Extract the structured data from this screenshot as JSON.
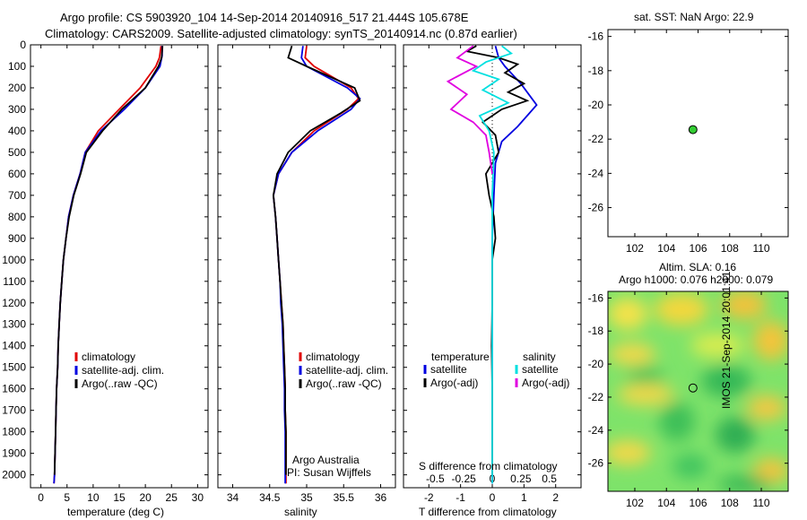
{
  "header": {
    "line1": "Argo profile: CS 5903920_104 14-Sep-2014 20140916_517 21.444S 105.678E",
    "line2": "Climatology: CARS2009. Satellite-adjusted climatology: synTS_20140914.nc (0.87d earlier)"
  },
  "colors": {
    "climatology": "#e00000",
    "satellite": "#0000e0",
    "argo": "#000000",
    "sal_satellite": "#00e0e0",
    "sal_argo": "#e000e0",
    "map_point": "#33cc33"
  },
  "depth_axis": {
    "ticks": [
      "0",
      "100",
      "200",
      "300",
      "400",
      "500",
      "600",
      "700",
      "800",
      "900",
      "1000",
      "1100",
      "1200",
      "1300",
      "1400",
      "1500",
      "1600",
      "1700",
      "1800",
      "1900",
      "2000"
    ],
    "range": [
      0,
      2060
    ],
    "reversed": true
  },
  "chart_data": [
    {
      "type": "line",
      "name": "temperature",
      "xlabel": "temperature (deg C)",
      "xticks": [
        "0",
        "5",
        "10",
        "15",
        "20",
        "25",
        "30"
      ],
      "xlim": [
        -2,
        32
      ],
      "ylim": [
        2060,
        0
      ],
      "legend": [
        "climatology",
        "satellite-adj. clim.",
        "Argo(..raw -QC)"
      ],
      "series": [
        {
          "name": "climatology",
          "color": "#e00000",
          "points": [
            [
              23,
              5
            ],
            [
              22.7,
              60
            ],
            [
              22,
              100
            ],
            [
              19,
              200
            ],
            [
              15,
              300
            ],
            [
              11,
              400
            ],
            [
              8.5,
              500
            ],
            [
              7.5,
              600
            ],
            [
              6.2,
              700
            ],
            [
              5.3,
              800
            ],
            [
              4.8,
              900
            ],
            [
              4.3,
              1000
            ],
            [
              4,
              1100
            ],
            [
              3.7,
              1200
            ],
            [
              3.5,
              1300
            ],
            [
              3.3,
              1400
            ],
            [
              3.2,
              1500
            ],
            [
              3,
              1600
            ],
            [
              2.9,
              1700
            ],
            [
              2.8,
              1800
            ],
            [
              2.7,
              1900
            ],
            [
              2.6,
              2000
            ],
            [
              2.5,
              2040
            ]
          ]
        },
        {
          "name": "satellite-adj. clim.",
          "color": "#0000e0",
          "points": [
            [
              23.2,
              5
            ],
            [
              23.2,
              50
            ],
            [
              22.8,
              100
            ],
            [
              20,
              200
            ],
            [
              16,
              300
            ],
            [
              11.5,
              400
            ],
            [
              8.5,
              500
            ],
            [
              7.5,
              600
            ],
            [
              6.2,
              700
            ],
            [
              5.3,
              800
            ],
            [
              4.8,
              900
            ],
            [
              4.3,
              1000
            ],
            [
              4,
              1100
            ],
            [
              3.7,
              1200
            ],
            [
              3.5,
              1300
            ],
            [
              3.3,
              1400
            ],
            [
              3.2,
              1500
            ],
            [
              3,
              1600
            ],
            [
              2.9,
              1700
            ],
            [
              2.8,
              1800
            ],
            [
              2.7,
              1900
            ],
            [
              2.6,
              2000
            ],
            [
              2.5,
              2040
            ]
          ]
        },
        {
          "name": "Argo(..raw -QC)",
          "color": "#000000",
          "points": [
            [
              23.3,
              5
            ],
            [
              23.1,
              60
            ],
            [
              22.5,
              100
            ],
            [
              20,
              200
            ],
            [
              15.5,
              300
            ],
            [
              11.8,
              400
            ],
            [
              8.7,
              500
            ],
            [
              7.6,
              600
            ],
            [
              6.3,
              700
            ],
            [
              5.4,
              800
            ],
            [
              4.8,
              900
            ],
            [
              4.3,
              1000
            ],
            [
              4,
              1100
            ],
            [
              3.7,
              1200
            ],
            [
              3.5,
              1300
            ],
            [
              3.3,
              1400
            ],
            [
              3.2,
              1500
            ],
            [
              3,
              1600
            ],
            [
              2.9,
              1700
            ],
            [
              2.8,
              1800
            ],
            [
              2.7,
              1900
            ],
            [
              2.6,
              2000
            ]
          ]
        }
      ]
    },
    {
      "type": "line",
      "name": "salinity",
      "xlabel": "salinity",
      "xticks": [
        "34",
        "34.5",
        "35",
        "35.5",
        "36"
      ],
      "xlim": [
        33.8,
        36.2
      ],
      "ylim": [
        2060,
        0
      ],
      "legend": [
        "climatology",
        "satellite-adj. clim.",
        "Argo(..raw -QC)"
      ],
      "annotation": [
        "Argo Australia",
        "PI: Susan Wijffels"
      ],
      "series": [
        {
          "name": "climatology",
          "color": "#e00000",
          "points": [
            [
              35,
              5
            ],
            [
              34.98,
              60
            ],
            [
              35.1,
              100
            ],
            [
              35.6,
              200
            ],
            [
              35.7,
              250
            ],
            [
              35.55,
              300
            ],
            [
              35.1,
              400
            ],
            [
              34.8,
              500
            ],
            [
              34.62,
              600
            ],
            [
              34.55,
              700
            ],
            [
              34.58,
              800
            ],
            [
              34.6,
              900
            ],
            [
              34.62,
              1000
            ],
            [
              34.64,
              1100
            ],
            [
              34.66,
              1200
            ],
            [
              34.68,
              1300
            ],
            [
              34.69,
              1400
            ],
            [
              34.7,
              1500
            ],
            [
              34.71,
              1600
            ],
            [
              34.71,
              1700
            ],
            [
              34.72,
              1800
            ],
            [
              34.72,
              1900
            ],
            [
              34.72,
              2000
            ],
            [
              34.72,
              2040
            ]
          ]
        },
        {
          "name": "satellite-adj. clim.",
          "color": "#0000e0",
          "points": [
            [
              34.95,
              5
            ],
            [
              34.93,
              60
            ],
            [
              35.0,
              100
            ],
            [
              35.55,
              200
            ],
            [
              35.72,
              250
            ],
            [
              35.6,
              300
            ],
            [
              35.15,
              400
            ],
            [
              34.8,
              500
            ],
            [
              34.62,
              600
            ],
            [
              34.55,
              700
            ],
            [
              34.58,
              800
            ],
            [
              34.6,
              900
            ],
            [
              34.62,
              1000
            ],
            [
              34.64,
              1100
            ],
            [
              34.65,
              1200
            ],
            [
              34.67,
              1300
            ],
            [
              34.68,
              1400
            ],
            [
              34.69,
              1500
            ],
            [
              34.7,
              1600
            ],
            [
              34.7,
              1700
            ],
            [
              34.71,
              1800
            ],
            [
              34.71,
              1900
            ],
            [
              34.71,
              2000
            ],
            [
              34.71,
              2040
            ]
          ]
        },
        {
          "name": "Argo(..raw -QC)",
          "color": "#000000",
          "points": [
            [
              34.8,
              5
            ],
            [
              34.75,
              60
            ],
            [
              35.0,
              100
            ],
            [
              35.65,
              200
            ],
            [
              35.72,
              260
            ],
            [
              35.45,
              320
            ],
            [
              35.05,
              400
            ],
            [
              34.75,
              500
            ],
            [
              34.6,
              600
            ],
            [
              34.55,
              700
            ],
            [
              34.58,
              800
            ],
            [
              34.6,
              900
            ],
            [
              34.62,
              1000
            ],
            [
              34.64,
              1100
            ],
            [
              34.66,
              1200
            ],
            [
              34.68,
              1300
            ],
            [
              34.69,
              1400
            ],
            [
              34.7,
              1500
            ],
            [
              34.71,
              1600
            ],
            [
              34.71,
              1700
            ],
            [
              34.72,
              1800
            ],
            [
              34.72,
              1900
            ],
            [
              34.72,
              2000
            ]
          ]
        }
      ]
    },
    {
      "type": "line",
      "name": "difference",
      "xlabel": "T difference from climatology",
      "xticks": [
        "-2",
        "-1",
        "0",
        "1",
        "2"
      ],
      "xlim": [
        -2.8,
        2.8
      ],
      "top_label": "S difference from climatology",
      "top_ticks": [
        "-0.5",
        "-0.25",
        "0",
        "0.25",
        "0.5"
      ],
      "top_tick_values": [
        -1.8,
        -0.9,
        0,
        0.9,
        1.8
      ],
      "ylim": [
        2060,
        0
      ],
      "legend_left_title": "temperature",
      "legend_right_title": "salinity",
      "legend": [
        "satellite",
        "Argo(-adj)",
        "satellite",
        "Argo(-adj)"
      ],
      "series": [
        {
          "name": "T satellite",
          "color": "#0000e0",
          "points": [
            [
              0.1,
              5
            ],
            [
              0.2,
              60
            ],
            [
              0.4,
              100
            ],
            [
              0.9,
              180
            ],
            [
              1.4,
              280
            ],
            [
              0.8,
              380
            ],
            [
              0.3,
              450
            ],
            [
              0.1,
              550
            ],
            [
              0.05,
              700
            ],
            [
              0,
              900
            ],
            [
              0,
              1200
            ],
            [
              0,
              1600
            ],
            [
              0,
              2040
            ]
          ]
        },
        {
          "name": "T Argo(-adj)",
          "color": "#000000",
          "points": [
            [
              -0.5,
              5
            ],
            [
              -0.8,
              30
            ],
            [
              0.2,
              60
            ],
            [
              0.8,
              90
            ],
            [
              0.4,
              130
            ],
            [
              1.0,
              180
            ],
            [
              0.5,
              220
            ],
            [
              1.1,
              260
            ],
            [
              0.3,
              300
            ],
            [
              -0.3,
              360
            ],
            [
              0.1,
              420
            ],
            [
              0.2,
              500
            ],
            [
              -0.2,
              600
            ],
            [
              -0.1,
              700
            ],
            [
              0.05,
              800
            ],
            [
              0.1,
              900
            ],
            [
              0,
              1000
            ],
            [
              0,
              1200
            ],
            [
              -0.02,
              1400
            ],
            [
              0,
              1600
            ],
            [
              0,
              1800
            ],
            [
              0,
              2000
            ]
          ]
        },
        {
          "name": "S satellite",
          "color": "#00e0e0",
          "points": [
            [
              0.3,
              5
            ],
            [
              0.6,
              40
            ],
            [
              -0.2,
              80
            ],
            [
              -0.6,
              120
            ],
            [
              0.2,
              160
            ],
            [
              -0.3,
              210
            ],
            [
              0.5,
              270
            ],
            [
              -0.4,
              330
            ],
            [
              -0.1,
              400
            ],
            [
              0.05,
              500
            ],
            [
              0,
              700
            ],
            [
              0,
              1000
            ],
            [
              0,
              1400
            ],
            [
              0,
              2040
            ]
          ]
        },
        {
          "name": "S Argo(-adj)",
          "color": "#e000e0",
          "points": [
            [
              -0.6,
              5
            ],
            [
              -1.1,
              60
            ],
            [
              -0.5,
              100
            ],
            [
              -1.4,
              170
            ],
            [
              -0.8,
              230
            ],
            [
              -1.3,
              300
            ],
            [
              -0.6,
              360
            ],
            [
              -0.2,
              420
            ],
            [
              -0.1,
              500
            ],
            [
              0,
              600
            ]
          ]
        }
      ]
    },
    {
      "type": "scatter",
      "name": "sst_map",
      "title": "sat. SST: NaN Argo: 22.9",
      "xticks": [
        "102",
        "104",
        "106",
        "108",
        "110"
      ],
      "yticks": [
        "-16",
        "-18",
        "-20",
        "-22",
        "-24",
        "-26"
      ],
      "xlim": [
        100.3,
        111.7
      ],
      "ylim": [
        -27.7,
        -15.6
      ],
      "points": [
        [
          105.678,
          -21.444
        ]
      ]
    },
    {
      "type": "heatmap",
      "name": "sla_map",
      "title_line1": "Altim. SLA: 0.16",
      "title_line2": "Argo h1000: 0.076 h2000: 0.079",
      "xticks": [
        "102",
        "104",
        "106",
        "108",
        "110"
      ],
      "yticks": [
        "-16",
        "-18",
        "-20",
        "-22",
        "-24",
        "-26"
      ],
      "xlim": [
        100.3,
        111.7
      ],
      "ylim": [
        -27.7,
        -15.6
      ],
      "points": [
        [
          105.678,
          -21.444
        ]
      ]
    }
  ],
  "side_label": "IMOS 21-Sep-2014 20:01:41",
  "legend_labels": {
    "climatology": "climatology",
    "satellite_adj": "satellite-adj. clim.",
    "argo_raw": "Argo(..raw -QC)",
    "temperature": "temperature",
    "salinity": "salinity",
    "satellite": "satellite",
    "argo_adj": "Argo(-adj)"
  },
  "annotation": {
    "line1": "Argo Australia",
    "line2": "PI: Susan Wijffels"
  }
}
